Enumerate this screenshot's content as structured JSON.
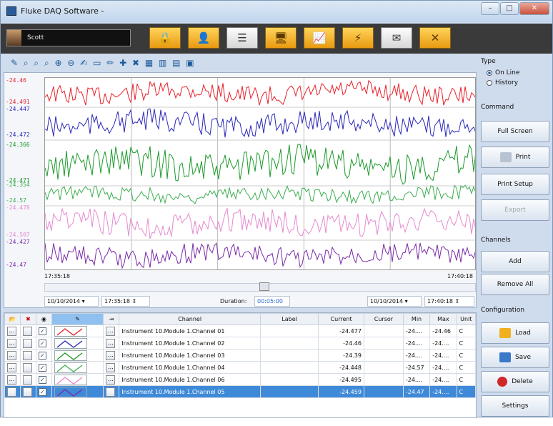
{
  "window": {
    "title": "Fluke DAQ Software -",
    "min": "–",
    "max": "□",
    "close": "✕"
  },
  "toolbar": {
    "user": "Scott",
    "buttons": [
      "lock-icon",
      "user-icon",
      "list-icon",
      "network-icon",
      "chart-icon",
      "alarm-icon",
      "mail-icon",
      "close-icon"
    ],
    "glyphs": [
      "🔒",
      "👤",
      "☰",
      "🖥",
      "📈",
      "⚡",
      "✉",
      "✕"
    ]
  },
  "chart_tools": "✎ ⌕ ⌕ ⌕ ⊕ ⊖ ✍ ▭ ✏ ✚ ✖ ▦ ▥ ▤ ▣",
  "chart_data": {
    "type": "line",
    "series": [
      {
        "name": "Instrument 10.Module 1.Channel 01",
        "color": "#e8202a",
        "ymax": "-24.46",
        "ymin": "-24.491"
      },
      {
        "name": "Instrument 10.Module 1.Channel 02",
        "color": "#2a27b8",
        "ymax": "-24.447",
        "ymin": "-24.472"
      },
      {
        "name": "Instrument 10.Module 1.Channel 03",
        "color": "#1b9a2a",
        "ymax": "-24.366",
        "ymin": "-24.471"
      },
      {
        "name": "Instrument 10.Module 1.Channel 04",
        "color": "#3dae50",
        "ymax": "-24.354",
        "ymin": "-24.57"
      },
      {
        "name": "Instrument 10.Module 1.Channel 06",
        "color": "#e58ad0",
        "ymax": "-24.478",
        "ymin": "-24.507"
      },
      {
        "name": "Instrument 10.Module 1.Channel 05",
        "color": "#7a2aa8",
        "ymax": "-24.427",
        "ymin": "-24.47"
      }
    ],
    "x_start": "17:35:18",
    "x_end": "17:40:18"
  },
  "range": {
    "start_date": "10/10/2014",
    "start_time": "17:35:18",
    "duration_label": "Duration:",
    "duration": "00:05:00",
    "end_date": "10/10/2014",
    "end_time": "17:40:18"
  },
  "table": {
    "headers": [
      "Channel",
      "Label",
      "Current",
      "Cursor",
      "Min",
      "Max",
      "Unit"
    ],
    "rows": [
      {
        "channel": "Instrument 10.Module 1.Channel 01",
        "label": "",
        "current": "-24.477",
        "cursor": "",
        "min": "-24....",
        "max": "-24.46",
        "unit": "C",
        "color": "#e8202a"
      },
      {
        "channel": "Instrument 10.Module 1.Channel 02",
        "label": "",
        "current": "-24.46",
        "cursor": "",
        "min": "-24....",
        "max": "-24....",
        "unit": "C",
        "color": "#2a27b8"
      },
      {
        "channel": "Instrument 10.Module 1.Channel 03",
        "label": "",
        "current": "-24.39",
        "cursor": "",
        "min": "-24....",
        "max": "-24....",
        "unit": "C",
        "color": "#1b9a2a"
      },
      {
        "channel": "Instrument 10.Module 1.Channel 04",
        "label": "",
        "current": "-24.448",
        "cursor": "",
        "min": "-24.57",
        "max": "-24....",
        "unit": "C",
        "color": "#3dae50"
      },
      {
        "channel": "Instrument 10.Module 1.Channel 06",
        "label": "",
        "current": "-24.495",
        "cursor": "",
        "min": "-24....",
        "max": "-24....",
        "unit": "C",
        "color": "#e58ad0"
      },
      {
        "channel": "Instrument 10.Module 1.Channel 05",
        "label": "",
        "current": "-24.459",
        "cursor": "",
        "min": "-24.47",
        "max": "-24....",
        "unit": "C",
        "color": "#7a2aa8"
      }
    ]
  },
  "side": {
    "type_label": "Type",
    "online": "On Line",
    "history": "History",
    "command_label": "Command",
    "full_screen": "Full Screen",
    "print": "Print",
    "print_setup": "Print Setup",
    "export": "Export",
    "channels_label": "Channels",
    "add": "Add",
    "remove_all": "Remove All",
    "config_label": "Configuration",
    "load": "Load",
    "save": "Save",
    "delete": "Delete",
    "settings": "Settings"
  }
}
